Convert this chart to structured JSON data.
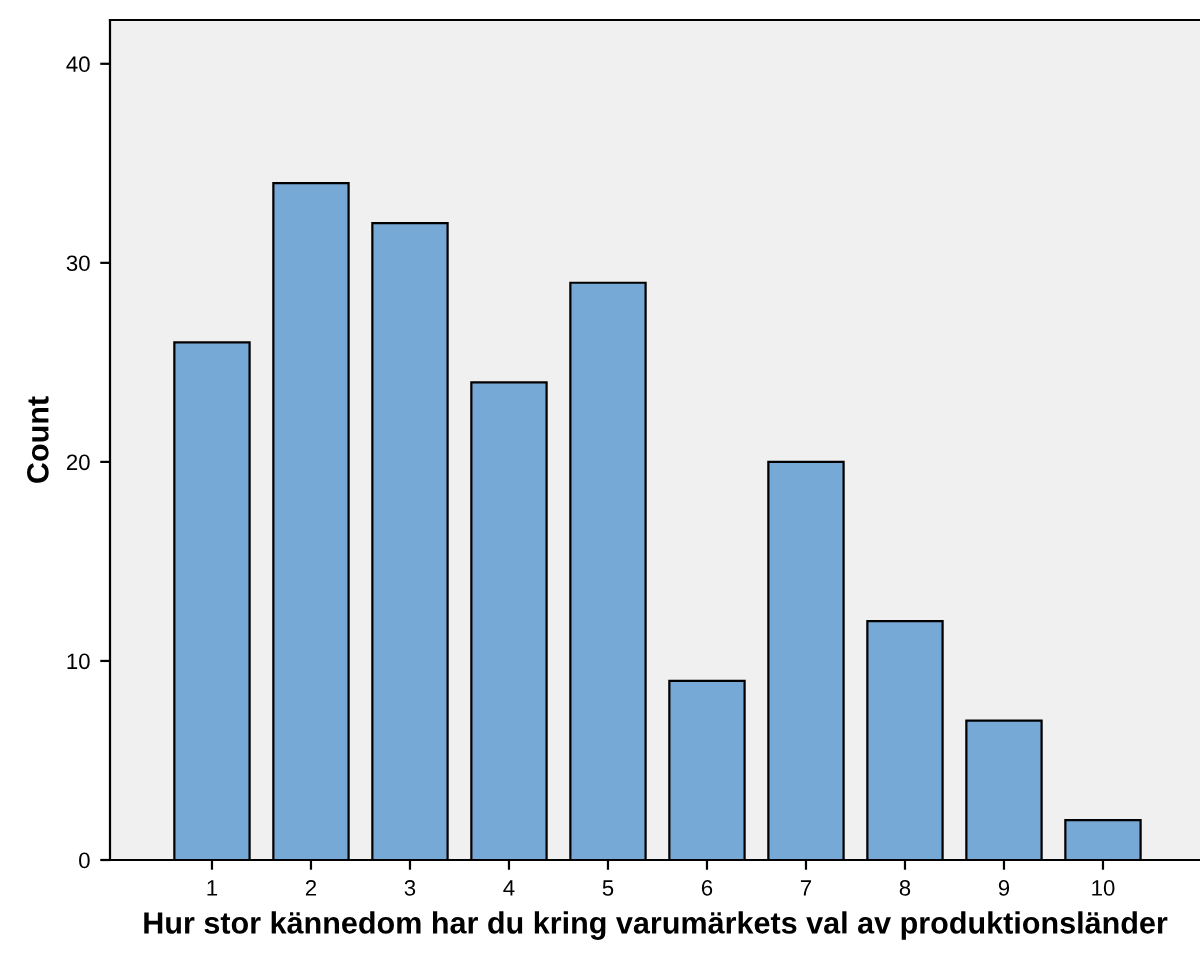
{
  "chart_data": {
    "type": "bar",
    "xlabel": "Hur stor kännedom har du kring varumärkets val av produktionsländer",
    "ylabel": "Count",
    "categories": [
      "1",
      "2",
      "3",
      "4",
      "5",
      "6",
      "7",
      "8",
      "9",
      "10"
    ],
    "values": [
      26,
      34,
      32,
      24,
      29,
      9,
      20,
      12,
      7,
      2
    ],
    "color": "#77a9d6",
    "ylim": [
      0,
      42.2
    ],
    "yticks": [
      0,
      10,
      20,
      30,
      40
    ],
    "grid": false
  }
}
